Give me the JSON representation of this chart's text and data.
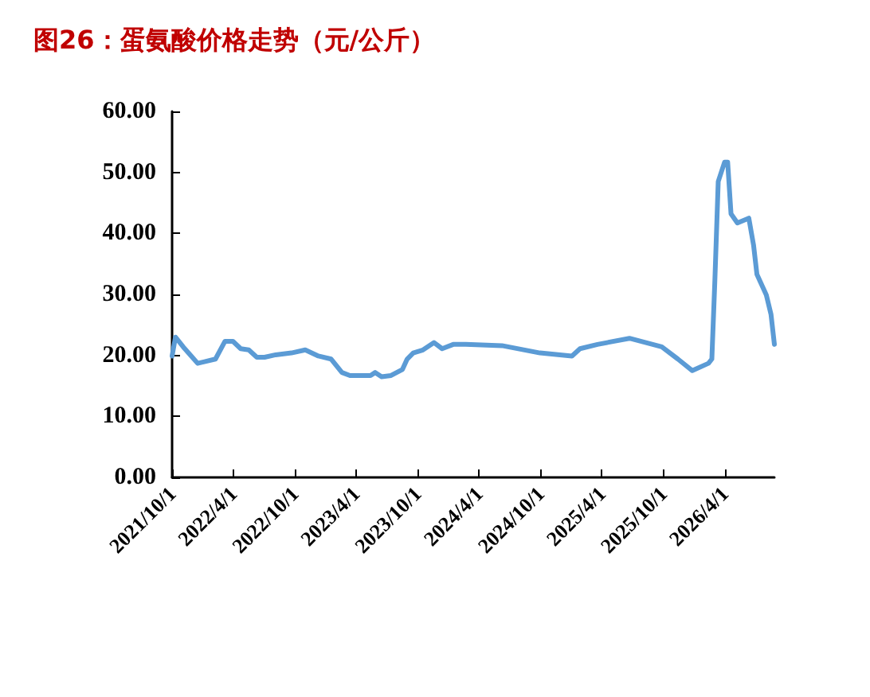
{
  "chart_data": {
    "type": "line",
    "title": "图26：蛋氨酸价格走势（元/公斤）",
    "x": [
      "2021-10-01",
      "2021-10-11",
      "2021-11-03",
      "2021-11-27",
      "2021-12-16",
      "2022-02-07",
      "2022-03-07",
      "2022-03-31",
      "2022-04-23",
      "2022-05-17",
      "2022-06-10",
      "2022-07-03",
      "2022-08-05",
      "2022-09-21",
      "2022-11-01",
      "2022-12-10",
      "2023-01-17",
      "2023-02-18",
      "2023-03-14",
      "2023-05-14",
      "2023-05-28",
      "2023-06-16",
      "2023-07-14",
      "2023-08-17",
      "2023-08-31",
      "2023-09-18",
      "2023-10-17",
      "2023-11-19",
      "2023-12-13",
      "2024-01-15",
      "2024-02-21",
      "2024-06-08",
      "2024-09-29",
      "2025-01-02",
      "2025-01-26",
      "2025-03-19",
      "2025-06-22",
      "2025-09-26",
      "2025-11-13",
      "2025-12-26",
      "2026-02-12",
      "2026-02-22",
      "2026-03-03",
      "2026-03-13",
      "2026-04-01",
      "2026-04-10",
      "2026-04-20",
      "2026-05-09",
      "2026-06-12",
      "2026-06-26",
      "2026-07-06",
      "2026-07-20",
      "2026-08-03",
      "2026-08-17",
      "2026-08-27"
    ],
    "series": [
      {
        "color": "#5b9bd5",
        "values": [
          19.9,
          23.0,
          21.4,
          19.9,
          18.7,
          19.4,
          22.3,
          22.3,
          21.1,
          20.9,
          19.7,
          19.7,
          20.1,
          20.4,
          20.9,
          19.9,
          19.4,
          17.2,
          16.7,
          16.7,
          17.2,
          16.5,
          16.7,
          17.7,
          19.4,
          20.4,
          20.9,
          22.1,
          21.1,
          21.8,
          21.8,
          21.6,
          20.4,
          19.9,
          21.1,
          21.8,
          22.8,
          21.4,
          19.4,
          17.5,
          18.7,
          19.4,
          32.3,
          48.5,
          51.7,
          51.7,
          43.2,
          41.7,
          42.5,
          38.1,
          33.3,
          31.6,
          29.9,
          26.7,
          21.8
        ]
      }
    ],
    "xlim": [
      "2021-10-01",
      "2026-08-27"
    ],
    "xticks": [
      {
        "value": "2021-10-01",
        "label": "2021/10/1"
      },
      {
        "value": "2022-04-01",
        "label": "2022/4/1"
      },
      {
        "value": "2022-10-01",
        "label": "2022/10/1"
      },
      {
        "value": "2023-04-01",
        "label": "2023/4/1"
      },
      {
        "value": "2023-10-01",
        "label": "2023/10/1"
      },
      {
        "value": "2024-04-01",
        "label": "2024/4/1"
      },
      {
        "value": "2024-10-01",
        "label": "2024/10/1"
      },
      {
        "value": "2025-04-01",
        "label": "2025/4/1"
      },
      {
        "value": "2025-10-01",
        "label": "2025/10/1"
      },
      {
        "value": "2026-04-01",
        "label": "2026/4/1"
      }
    ],
    "ylim": [
      0,
      60
    ],
    "yticks": [
      {
        "value": 0,
        "label": "0.00"
      },
      {
        "value": 10,
        "label": "10.00"
      },
      {
        "value": 20,
        "label": "20.00"
      },
      {
        "value": 30,
        "label": "30.00"
      },
      {
        "value": 40,
        "label": "40.00"
      },
      {
        "value": 50,
        "label": "50.00"
      },
      {
        "value": 60,
        "label": "60.00"
      }
    ],
    "grid": false,
    "marker": "none",
    "line_style": "solid"
  }
}
